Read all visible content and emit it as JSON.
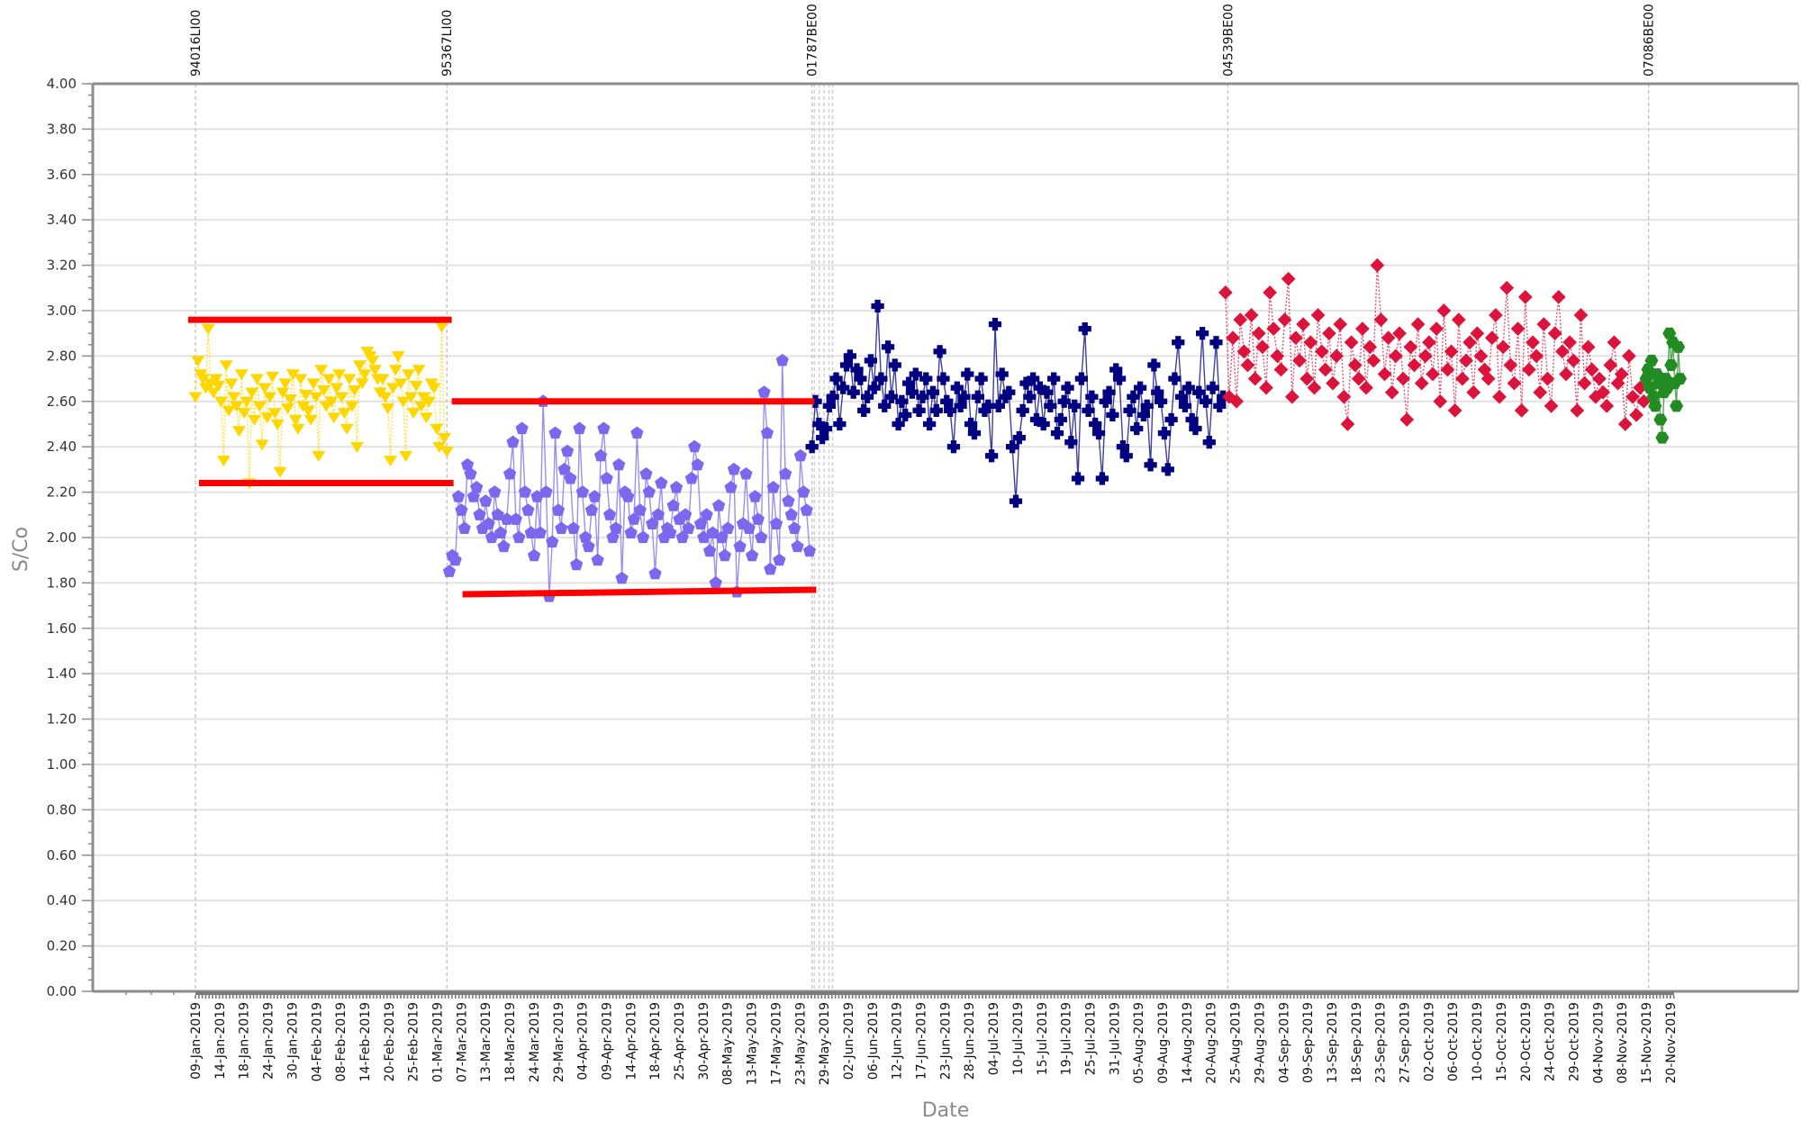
{
  "chart_data": {
    "type": "line",
    "title": "",
    "xlabel": "Date",
    "ylabel": "S/Co",
    "ylim": [
      0,
      4
    ],
    "yticks": [
      "0.00",
      "0.20",
      "0.40",
      "0.60",
      "0.80",
      "1.00",
      "1.20",
      "1.40",
      "1.60",
      "1.80",
      "2.00",
      "2.20",
      "2.40",
      "2.60",
      "2.80",
      "3.00",
      "3.20",
      "3.40",
      "3.60",
      "3.80",
      "4.00"
    ],
    "grid": true,
    "legend": "none",
    "x_tick_labels": [
      "09-Jan-2019",
      "14-Jan-2019",
      "18-Jan-2019",
      "24-Jan-2019",
      "30-Jan-2019",
      "04-Feb-2019",
      "08-Feb-2019",
      "14-Feb-2019",
      "20-Feb-2019",
      "25-Feb-2019",
      "01-Mar-2019",
      "07-Mar-2019",
      "13-Mar-2019",
      "18-Mar-2019",
      "24-Mar-2019",
      "29-Mar-2019",
      "04-Apr-2019",
      "09-Apr-2019",
      "14-Apr-2019",
      "18-Apr-2019",
      "25-Apr-2019",
      "30-Apr-2019",
      "08-May-2019",
      "13-May-2019",
      "17-May-2019",
      "23-May-2019",
      "29-May-2019",
      "02-Jun-2019",
      "06-Jun-2019",
      "12-Jun-2019",
      "17-Jun-2019",
      "23-Jun-2019",
      "28-Jun-2019",
      "04-Jul-2019",
      "10-Jul-2019",
      "15-Jul-2019",
      "19-Jul-2019",
      "25-Jul-2019",
      "31-Jul-2019",
      "05-Aug-2019",
      "09-Aug-2019",
      "14-Aug-2019",
      "20-Aug-2019",
      "25-Aug-2019",
      "29-Aug-2019",
      "04-Sep-2019",
      "09-Sep-2019",
      "13-Sep-2019",
      "18-Sep-2019",
      "23-Sep-2019",
      "27-Sep-2019",
      "02-Oct-2019",
      "06-Oct-2019",
      "10-Oct-2019",
      "15-Oct-2019",
      "20-Oct-2019",
      "24-Oct-2019",
      "29-Oct-2019",
      "04-Nov-2019",
      "08-Nov-2019",
      "15-Nov-2019",
      "20-Nov-2019"
    ],
    "lot_markers": [
      {
        "label": "94016LI00",
        "tick_index": 0
      },
      {
        "label": "95367LI00",
        "tick_index": 10.4
      },
      {
        "label": "01787BE00",
        "tick_index": 25.5
      },
      {
        "label": "04539BE00",
        "tick_index": 42.7
      },
      {
        "label": "07086BE00",
        "tick_index": 60.1
      }
    ],
    "extra_lot_lines_tick_index": [
      25.6,
      25.8,
      26.0,
      26.2,
      26.35
    ],
    "control_limits": [
      {
        "series": "94016LI00",
        "upper": 2.96,
        "lower": 2.24,
        "x_start": -0.3,
        "x_end": 10.6,
        "color": "#ff0000"
      },
      {
        "series": "95367LI00",
        "upper": 2.6,
        "lower_start": 1.75,
        "lower_end": 1.77,
        "x_start": 10.6,
        "x_end": 25.6,
        "color": "#ff0000"
      }
    ],
    "series": [
      {
        "name": "94016LI00",
        "color": "#ffd700",
        "marker": "triangle-down",
        "x_start": 0.0,
        "x_end": 10.4,
        "values": [
          2.62,
          2.78,
          2.72,
          2.7,
          2.66,
          2.92,
          2.68,
          2.64,
          2.7,
          2.67,
          2.6,
          2.34,
          2.76,
          2.56,
          2.68,
          2.62,
          2.58,
          2.47,
          2.72,
          2.55,
          2.6,
          2.24,
          2.64,
          2.52,
          2.7,
          2.58,
          2.41,
          2.66,
          2.53,
          2.62,
          2.71,
          2.55,
          2.5,
          2.29,
          2.64,
          2.68,
          2.57,
          2.61,
          2.72,
          2.52,
          2.48,
          2.7,
          2.58,
          2.63,
          2.56,
          2.52,
          2.68,
          2.62,
          2.36,
          2.74,
          2.65,
          2.58,
          2.7,
          2.6,
          2.53,
          2.66,
          2.72,
          2.62,
          2.55,
          2.48,
          2.7,
          2.58,
          2.65,
          2.4,
          2.76,
          2.68,
          2.72,
          2.82,
          2.8,
          2.78,
          2.74,
          2.7,
          2.64,
          2.7,
          2.62,
          2.57,
          2.34,
          2.66,
          2.74,
          2.8,
          2.68,
          2.6,
          2.36,
          2.72,
          2.62,
          2.55,
          2.67,
          2.74,
          2.58,
          2.62,
          2.53,
          2.6,
          2.68,
          2.66,
          2.48,
          2.4,
          2.93,
          2.44,
          2.38
        ]
      },
      {
        "name": "95367LI00",
        "color": "#7b68ee",
        "marker": "pentagon",
        "x_start": 10.5,
        "x_end": 25.4,
        "values": [
          1.85,
          1.92,
          1.9,
          2.18,
          2.12,
          2.04,
          2.32,
          2.28,
          2.18,
          2.22,
          2.1,
          2.04,
          2.16,
          2.06,
          2.0,
          2.2,
          2.1,
          2.02,
          1.96,
          2.08,
          2.28,
          2.42,
          2.08,
          2.0,
          2.48,
          2.2,
          2.12,
          2.02,
          1.92,
          2.18,
          2.02,
          2.6,
          2.2,
          1.74,
          1.98,
          2.46,
          2.12,
          2.04,
          2.3,
          2.38,
          2.26,
          2.04,
          1.88,
          2.48,
          2.2,
          2.0,
          1.96,
          2.12,
          2.18,
          1.9,
          2.36,
          2.48,
          2.26,
          2.1,
          2.0,
          2.04,
          2.32,
          1.82,
          2.2,
          2.18,
          2.02,
          2.08,
          2.46,
          2.12,
          2.0,
          2.28,
          2.2,
          2.06,
          1.84,
          2.1,
          2.24,
          2.0,
          2.04,
          2.02,
          2.14,
          2.22,
          2.08,
          2.0,
          2.1,
          2.04,
          2.26,
          2.4,
          2.32,
          2.06,
          2.0,
          2.1,
          1.94,
          2.02,
          1.8,
          2.14,
          2.0,
          1.92,
          2.04,
          2.22,
          2.3,
          1.76,
          1.96,
          2.06,
          2.28,
          2.04,
          1.92,
          2.18,
          2.08,
          2.0,
          2.64,
          2.46,
          1.86,
          2.22,
          2.06,
          1.9,
          2.78,
          2.28,
          2.16,
          2.1,
          2.04,
          1.96,
          2.36,
          2.2,
          2.12,
          1.94
        ]
      },
      {
        "name": "01787BE00",
        "color": "#000080",
        "marker": "cross",
        "x_start": 25.5,
        "x_end": 42.5,
        "values": [
          2.4,
          2.6,
          2.5,
          2.44,
          2.48,
          2.58,
          2.62,
          2.7,
          2.5,
          2.66,
          2.76,
          2.8,
          2.64,
          2.74,
          2.7,
          2.56,
          2.62,
          2.78,
          2.66,
          3.02,
          2.7,
          2.58,
          2.84,
          2.62,
          2.76,
          2.5,
          2.6,
          2.54,
          2.68,
          2.64,
          2.72,
          2.56,
          2.62,
          2.7,
          2.5,
          2.64,
          2.56,
          2.82,
          2.7,
          2.6,
          2.56,
          2.4,
          2.66,
          2.58,
          2.62,
          2.72,
          2.5,
          2.46,
          2.62,
          2.7,
          2.56,
          2.58,
          2.36,
          2.94,
          2.58,
          2.72,
          2.62,
          2.64,
          2.4,
          2.16,
          2.44,
          2.56,
          2.68,
          2.62,
          2.7,
          2.52,
          2.66,
          2.5,
          2.64,
          2.58,
          2.7,
          2.46,
          2.52,
          2.6,
          2.66,
          2.42,
          2.58,
          2.26,
          2.7,
          2.92,
          2.56,
          2.62,
          2.5,
          2.46,
          2.26,
          2.6,
          2.64,
          2.54,
          2.74,
          2.7,
          2.4,
          2.36,
          2.56,
          2.62,
          2.48,
          2.66,
          2.54,
          2.58,
          2.32,
          2.76,
          2.64,
          2.6,
          2.46,
          2.3,
          2.52,
          2.7,
          2.86,
          2.62,
          2.58,
          2.66,
          2.52,
          2.48,
          2.64,
          2.9,
          2.6,
          2.42,
          2.66,
          2.86,
          2.58,
          2.62
        ]
      },
      {
        "name": "04539BE00",
        "color": "#dc143c",
        "marker": "diamond",
        "x_start": 42.6,
        "x_end": 59.9,
        "values": [
          3.08,
          2.62,
          2.88,
          2.6,
          2.96,
          2.82,
          2.76,
          2.98,
          2.7,
          2.9,
          2.84,
          2.66,
          3.08,
          2.92,
          2.8,
          2.74,
          2.96,
          3.14,
          2.62,
          2.88,
          2.78,
          2.94,
          2.7,
          2.86,
          2.66,
          2.98,
          2.82,
          2.74,
          2.9,
          2.68,
          2.8,
          2.94,
          2.62,
          2.5,
          2.86,
          2.76,
          2.7,
          2.92,
          2.66,
          2.84,
          2.78,
          3.2,
          2.96,
          2.72,
          2.88,
          2.64,
          2.8,
          2.9,
          2.7,
          2.52,
          2.84,
          2.76,
          2.94,
          2.68,
          2.8,
          2.86,
          2.72,
          2.92,
          2.6,
          3.0,
          2.74,
          2.82,
          2.56,
          2.96,
          2.7,
          2.78,
          2.86,
          2.64,
          2.9,
          2.8,
          2.74,
          2.7,
          2.88,
          2.98,
          2.62,
          2.84,
          3.1,
          2.76,
          2.68,
          2.92,
          2.56,
          3.06,
          2.74,
          2.86,
          2.8,
          2.64,
          2.94,
          2.7,
          2.58,
          2.9,
          3.06,
          2.82,
          2.72,
          2.86,
          2.78,
          2.56,
          2.98,
          2.68,
          2.84,
          2.74,
          2.62,
          2.7,
          2.64,
          2.58,
          2.76,
          2.86,
          2.68,
          2.72,
          2.5,
          2.8,
          2.62,
          2.54,
          2.66,
          2.6
        ]
      },
      {
        "name": "07086BE00",
        "color": "#228b22",
        "marker": "hexagon",
        "x_start": 60.0,
        "x_end": 61.4,
        "values": [
          2.7,
          2.74,
          2.66,
          2.78,
          2.62,
          2.58,
          2.72,
          2.68,
          2.52,
          2.44,
          2.64,
          2.7,
          2.66,
          2.9,
          2.76,
          2.86,
          2.68,
          2.58,
          2.84,
          2.7
        ]
      }
    ]
  },
  "axes": {
    "y_title": "S/Co",
    "x_title": "Date"
  }
}
